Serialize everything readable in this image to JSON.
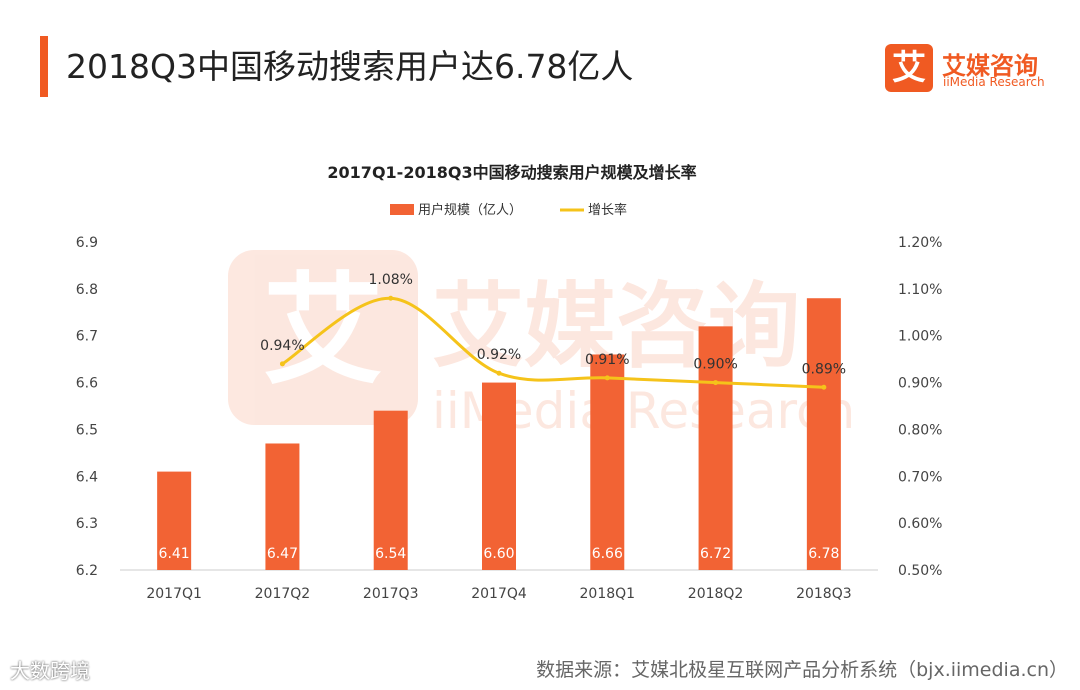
{
  "header": {
    "title": "2018Q3中国移动搜索用户达6.78亿人"
  },
  "logo": {
    "glyph": "艾",
    "name_cn": "艾媒咨询",
    "name_en": "iiMedia Research"
  },
  "watermark": {
    "cn": "艾媒咨询",
    "en": "iiMedia Research"
  },
  "footer": {
    "left_mark": "大数跨境",
    "source": "数据来源：艾媒北极星互联网产品分析系统（bjx.iimedia.cn）"
  },
  "colors": {
    "accent": "#f05a22",
    "bar": "#f26334",
    "line": "#f5c31a"
  },
  "chart_data": {
    "type": "bar",
    "title": "2017Q1-2018Q3中国移动搜索用户规模及增长率",
    "categories": [
      "2017Q1",
      "2017Q2",
      "2017Q3",
      "2017Q4",
      "2018Q1",
      "2018Q2",
      "2018Q3"
    ],
    "series": [
      {
        "name": "用户规模（亿人）",
        "type": "bar",
        "axis": "left",
        "values": [
          6.41,
          6.47,
          6.54,
          6.6,
          6.66,
          6.72,
          6.78
        ],
        "labels": [
          "6.41",
          "6.47",
          "6.54",
          "6.60",
          "6.66",
          "6.72",
          "6.78"
        ]
      },
      {
        "name": "增长率",
        "type": "line",
        "axis": "right",
        "smooth": true,
        "values": [
          null,
          0.94,
          1.08,
          0.92,
          0.91,
          0.9,
          0.89
        ],
        "labels": [
          "",
          "0.94%",
          "1.08%",
          "0.92%",
          "0.91%",
          "0.90%",
          "0.89%"
        ]
      }
    ],
    "y_left": {
      "min": 6.2,
      "max": 6.9,
      "ticks": [
        6.2,
        6.3,
        6.4,
        6.5,
        6.6,
        6.7,
        6.8,
        6.9
      ],
      "tick_labels": [
        "6.2",
        "6.3",
        "6.4",
        "6.5",
        "6.6",
        "6.7",
        "6.8",
        "6.9"
      ]
    },
    "y_right": {
      "min": 0.5,
      "max": 1.2,
      "ticks": [
        0.5,
        0.6,
        0.7,
        0.8,
        0.9,
        1.0,
        1.1,
        1.2
      ],
      "tick_labels": [
        "0.50%",
        "0.60%",
        "0.70%",
        "0.80%",
        "0.90%",
        "1.00%",
        "1.10%",
        "1.20%"
      ]
    },
    "legend_position": "top-center",
    "grid": false
  }
}
